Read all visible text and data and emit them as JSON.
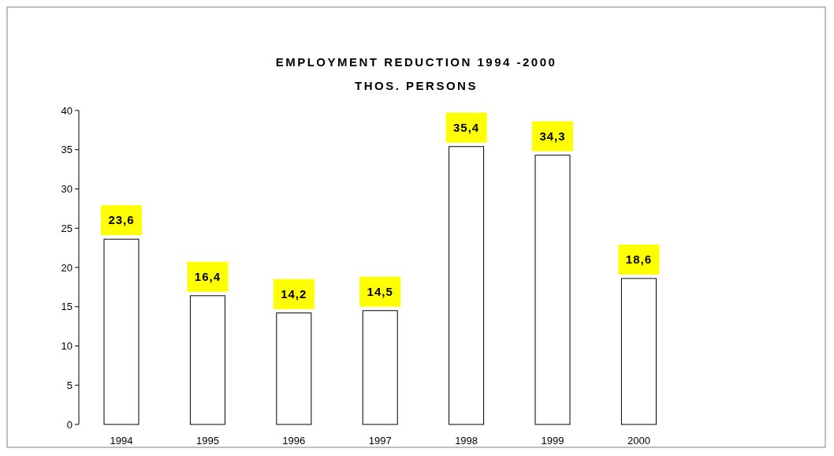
{
  "chart_data": {
    "type": "bar",
    "title": "EMPLOYMENT REDUCTION 1994 -2000",
    "subtitle": "THOS. PERSONS",
    "categories": [
      "1994",
      "1995",
      "1996",
      "1997",
      "1998",
      "1999",
      "2000"
    ],
    "values": [
      23.6,
      16.4,
      14.2,
      14.5,
      35.4,
      34.3,
      18.6
    ],
    "value_labels": [
      "23,6",
      "16,4",
      "14,2",
      "14,5",
      "35,4",
      "34,3",
      "18,6"
    ],
    "color": "#ffffff",
    "ylim": [
      0,
      40
    ],
    "yticks": [
      0,
      5,
      10,
      15,
      20,
      25,
      30,
      35,
      40
    ],
    "grid": false
  }
}
